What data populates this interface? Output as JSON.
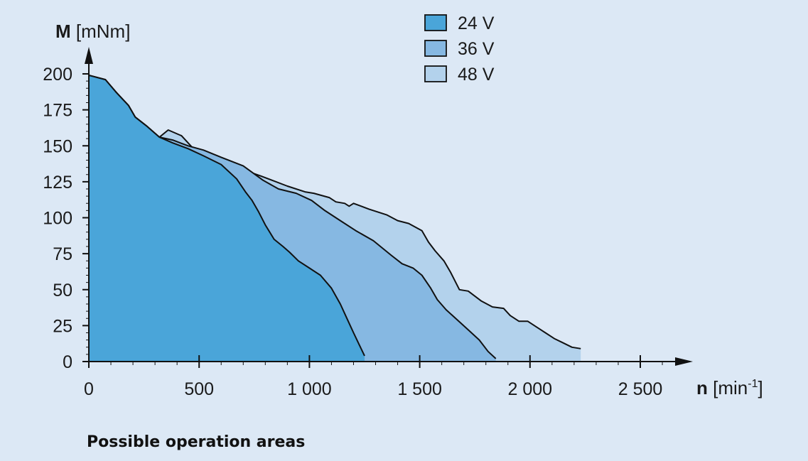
{
  "caption": "Possible operation areas",
  "chart_data": {
    "type": "area",
    "title": "",
    "ylabel_symbol": "M",
    "ylabel_unit": " [mNm]",
    "xlabel_symbol": "n",
    "xlabel_unit_base": " [min",
    "xlabel_unit_sup": "-1",
    "xlabel_unit_end": "]",
    "xlim": [
      0,
      2650
    ],
    "ylim": [
      0,
      200
    ],
    "x_ticks": [
      {
        "value": 0,
        "label": "0"
      },
      {
        "value": 500,
        "label": "500"
      },
      {
        "value": 1000,
        "label": "1 000"
      },
      {
        "value": 1500,
        "label": "1 500"
      },
      {
        "value": 2000,
        "label": "2 000"
      },
      {
        "value": 2500,
        "label": "2 500"
      }
    ],
    "y_ticks": [
      {
        "value": 0,
        "label": "0"
      },
      {
        "value": 25,
        "label": "25"
      },
      {
        "value": 50,
        "label": "50"
      },
      {
        "value": 75,
        "label": "75"
      },
      {
        "value": 100,
        "label": "100"
      },
      {
        "value": 125,
        "label": "125"
      },
      {
        "value": 150,
        "label": "150"
      },
      {
        "value": 175,
        "label": "175"
      },
      {
        "value": 200,
        "label": "200"
      }
    ],
    "legend_position": "top-center",
    "series": [
      {
        "name": "48 V",
        "color": "#b3d2ec",
        "points": [
          [
            0,
            199
          ],
          [
            75,
            196
          ],
          [
            125,
            187
          ],
          [
            180,
            178
          ],
          [
            210,
            170
          ],
          [
            260,
            164
          ],
          [
            320,
            156
          ],
          [
            360,
            161
          ],
          [
            420,
            157
          ],
          [
            480,
            147
          ],
          [
            560,
            140
          ],
          [
            650,
            136
          ],
          [
            780,
            129
          ],
          [
            900,
            122
          ],
          [
            980,
            118
          ],
          [
            1020,
            117
          ],
          [
            1090,
            114
          ],
          [
            1120,
            111
          ],
          [
            1160,
            110
          ],
          [
            1180,
            108
          ],
          [
            1200,
            110
          ],
          [
            1270,
            106
          ],
          [
            1350,
            102
          ],
          [
            1400,
            98
          ],
          [
            1450,
            96
          ],
          [
            1510,
            91
          ],
          [
            1540,
            83
          ],
          [
            1570,
            77
          ],
          [
            1610,
            70
          ],
          [
            1640,
            62
          ],
          [
            1680,
            50
          ],
          [
            1720,
            49
          ],
          [
            1780,
            42
          ],
          [
            1830,
            38
          ],
          [
            1880,
            37
          ],
          [
            1910,
            32
          ],
          [
            1950,
            28
          ],
          [
            1990,
            28
          ],
          [
            2030,
            24
          ],
          [
            2070,
            20
          ],
          [
            2110,
            16
          ],
          [
            2150,
            13
          ],
          [
            2190,
            10
          ],
          [
            2230,
            9
          ]
        ]
      },
      {
        "name": "36 V",
        "color": "#86b8e2",
        "points": [
          [
            0,
            199
          ],
          [
            75,
            196
          ],
          [
            125,
            187
          ],
          [
            180,
            178
          ],
          [
            210,
            170
          ],
          [
            260,
            164
          ],
          [
            320,
            156
          ],
          [
            380,
            154
          ],
          [
            450,
            150
          ],
          [
            520,
            147
          ],
          [
            600,
            142
          ],
          [
            700,
            136
          ],
          [
            790,
            126
          ],
          [
            860,
            120
          ],
          [
            940,
            117
          ],
          [
            1010,
            112
          ],
          [
            1070,
            105
          ],
          [
            1140,
            98
          ],
          [
            1210,
            91
          ],
          [
            1290,
            84
          ],
          [
            1370,
            74
          ],
          [
            1420,
            68
          ],
          [
            1470,
            65
          ],
          [
            1510,
            60
          ],
          [
            1550,
            51
          ],
          [
            1580,
            43
          ],
          [
            1620,
            36
          ],
          [
            1670,
            29
          ],
          [
            1720,
            22
          ],
          [
            1770,
            15
          ],
          [
            1810,
            7
          ],
          [
            1845,
            2
          ]
        ]
      },
      {
        "name": "24 V",
        "color": "#4aa5d9",
        "points": [
          [
            0,
            199
          ],
          [
            75,
            196
          ],
          [
            125,
            187
          ],
          [
            180,
            178
          ],
          [
            210,
            170
          ],
          [
            260,
            164
          ],
          [
            320,
            156
          ],
          [
            380,
            152
          ],
          [
            450,
            148
          ],
          [
            520,
            143
          ],
          [
            600,
            137
          ],
          [
            670,
            127
          ],
          [
            710,
            118
          ],
          [
            740,
            112
          ],
          [
            770,
            104
          ],
          [
            800,
            95
          ],
          [
            840,
            85
          ],
          [
            880,
            80
          ],
          [
            910,
            76
          ],
          [
            950,
            70
          ],
          [
            1000,
            65
          ],
          [
            1050,
            60
          ],
          [
            1100,
            51
          ],
          [
            1140,
            40
          ],
          [
            1170,
            30
          ],
          [
            1200,
            20
          ],
          [
            1225,
            12
          ],
          [
            1250,
            4
          ]
        ]
      }
    ]
  }
}
